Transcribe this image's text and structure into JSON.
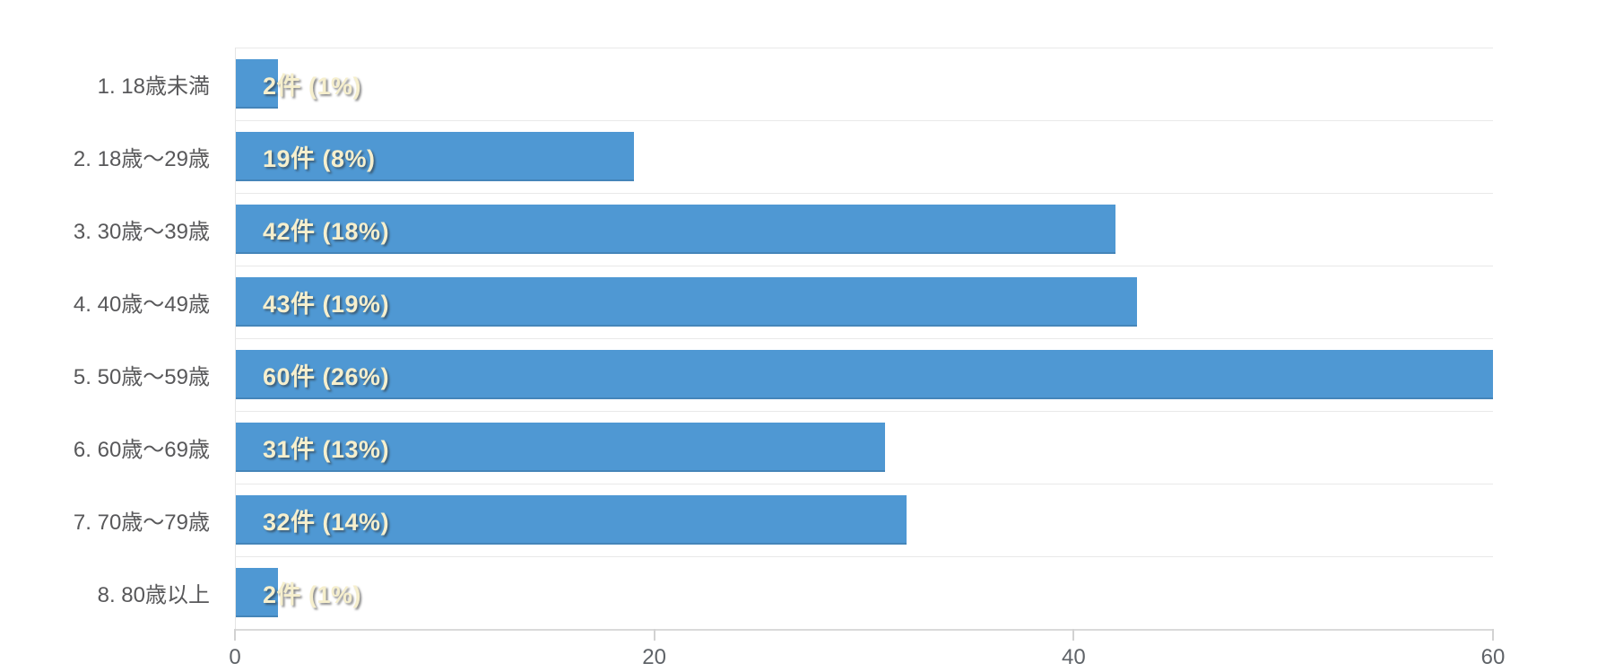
{
  "chart_data": {
    "type": "bar",
    "orientation": "horizontal",
    "title": "",
    "xlabel": "",
    "ylabel": "",
    "categories": [
      "1. 18歳未満",
      "2. 18歳～29歳",
      "3. 30歳～39歳",
      "4. 40歳～49歳",
      "5. 50歳～59歳",
      "6. 60歳～69歳",
      "7. 70歳～79歳",
      "8. 80歳以上"
    ],
    "values": [
      2,
      19,
      42,
      43,
      60,
      31,
      32,
      2
    ],
    "bar_labels": [
      "2件 (1%)",
      "19件 (8%)",
      "42件 (18%)",
      "43件 (19%)",
      "60件 (26%)",
      "31件 (13%)",
      "32件 (14%)",
      "2件 (1%)"
    ],
    "x_ticks": [
      0,
      20,
      40,
      60
    ],
    "xlim": [
      0,
      60
    ],
    "grid": "horizontal row separators only",
    "legend": "none",
    "colors": {
      "bar": "#4f98d3",
      "bar_label_text": "#f6efcd",
      "category_text": "#58585a",
      "tick_text": "#5f6368",
      "gridline": "#e9e9e9",
      "axis_line": "#dadada",
      "background": "#ffffff"
    }
  }
}
